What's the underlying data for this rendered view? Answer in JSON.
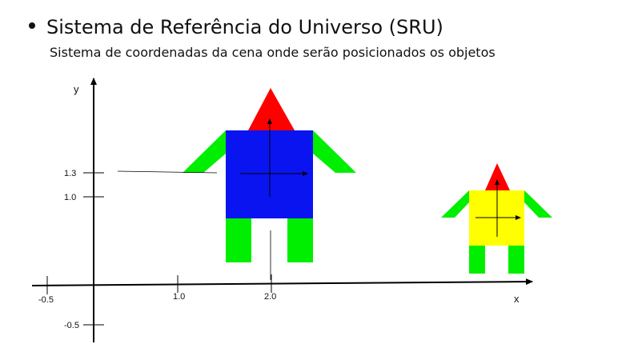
{
  "slide": {
    "title": "Sistema de Referência do Universo (SRU)",
    "subtitle": "Sistema de coordenadas da cena onde serão posicionados os objetos"
  },
  "axes": {
    "x_label": "x",
    "y_label": "y",
    "x_ticks": [
      "-0.5",
      "1.0",
      "2.0"
    ],
    "y_ticks": [
      "1.3",
      "1.0",
      "-0.5"
    ]
  },
  "colors": {
    "large_robot_body": "#0a14f0",
    "small_robot_body": "#ffff00",
    "head": "#ff0000",
    "limbs": "#00ee00"
  }
}
